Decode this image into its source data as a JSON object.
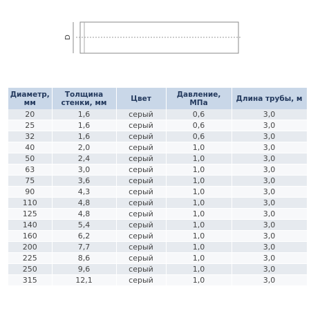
{
  "diagram": {
    "label": "D"
  },
  "table": {
    "header": [
      [
        "Диаметр,",
        "мм"
      ],
      [
        "Толщина",
        "стенки, мм"
      ],
      [
        "Цвет"
      ],
      [
        "Давление,",
        "МПа"
      ],
      [
        "Длина трубы, м"
      ]
    ],
    "rows": [
      [
        "20",
        "1,6",
        "серый",
        "0,6",
        "3,0"
      ],
      [
        "25",
        "1,6",
        "серый",
        "0,6",
        "3,0"
      ],
      [
        "32",
        "1,6",
        "серый",
        "0,6",
        "3,0"
      ],
      [
        "40",
        "2,0",
        "серый",
        "1,0",
        "3,0"
      ],
      [
        "50",
        "2,4",
        "серый",
        "1,0",
        "3,0"
      ],
      [
        "63",
        "3,0",
        "серый",
        "1,0",
        "3,0"
      ],
      [
        "75",
        "3,6",
        "серый",
        "1,0",
        "3,0"
      ],
      [
        "90",
        "4,3",
        "серый",
        "1,0",
        "3,0"
      ],
      [
        "110",
        "4,8",
        "серый",
        "1,0",
        "3,0"
      ],
      [
        "125",
        "4,8",
        "серый",
        "1,0",
        "3,0"
      ],
      [
        "140",
        "5,4",
        "серый",
        "1,0",
        "3,0"
      ],
      [
        "160",
        "6,2",
        "серый",
        "1,0",
        "3,0"
      ],
      [
        "200",
        "7,7",
        "серый",
        "1,0",
        "3,0"
      ],
      [
        "225",
        "8,6",
        "серый",
        "1,0",
        "3,0"
      ],
      [
        "250",
        "9,6",
        "серый",
        "1,0",
        "3,0"
      ],
      [
        "315",
        "12,1",
        "серый",
        "1,0",
        "3,0"
      ]
    ]
  }
}
